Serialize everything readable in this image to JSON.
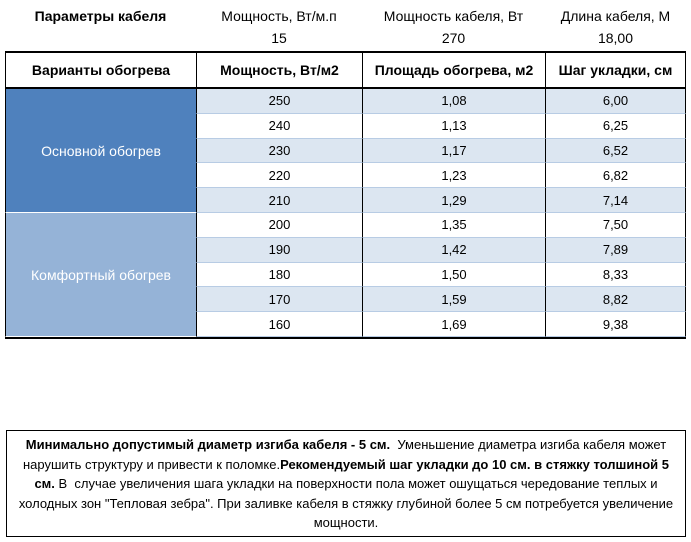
{
  "params": {
    "title": "Параметры кабеля",
    "columns": [
      {
        "label": "Мощность, Вт/м.п",
        "value": "15"
      },
      {
        "label": "Мощность кабеля, Вт",
        "value": "270"
      },
      {
        "label": "Длина кабеля, М",
        "value": "18,00"
      }
    ]
  },
  "table": {
    "header": [
      "Варианты обогрева",
      "Мощность, Вт/м2",
      "Площадь обогрева, м2",
      "Шаг укладки, см"
    ],
    "groups": [
      {
        "label": "Основной обогрев",
        "color": "#4f81bd",
        "rows": [
          [
            "250",
            "1,08",
            "6,00"
          ],
          [
            "240",
            "1,13",
            "6,25"
          ],
          [
            "230",
            "1,17",
            "6,52"
          ],
          [
            "220",
            "1,23",
            "6,82"
          ],
          [
            "210",
            "1,29",
            "7,14"
          ]
        ]
      },
      {
        "label": "Комфортный обогрев",
        "color": "#95b3d7",
        "rows": [
          [
            "200",
            "1,35",
            "7,50"
          ],
          [
            "190",
            "1,42",
            "7,89"
          ],
          [
            "180",
            "1,50",
            "8,33"
          ],
          [
            "170",
            "1,59",
            "8,82"
          ],
          [
            "160",
            "1,69",
            "9,38"
          ]
        ]
      }
    ]
  },
  "note": [
    {
      "text": "Минимально допустимый диаметр изгиба кабеля - 5 см.",
      "bold": true
    },
    {
      "text": "  Уменьшение диаметра изгиба кабеля может нарушить структуру и привести к поломке.",
      "bold": false
    },
    {
      "text": "Рекомендуемый шаг укладки до 10 см. в стяжку толшиной 5 см.",
      "bold": true
    },
    {
      "text": " В  случае увеличения шага укладки на поверхности пола может ошущаться чередование теплых и холодных зон \"Тепловая зебра\". При заливке кабеля в стяжку глубиной более 5 см потребуется увеличение мощности.",
      "bold": false
    }
  ]
}
